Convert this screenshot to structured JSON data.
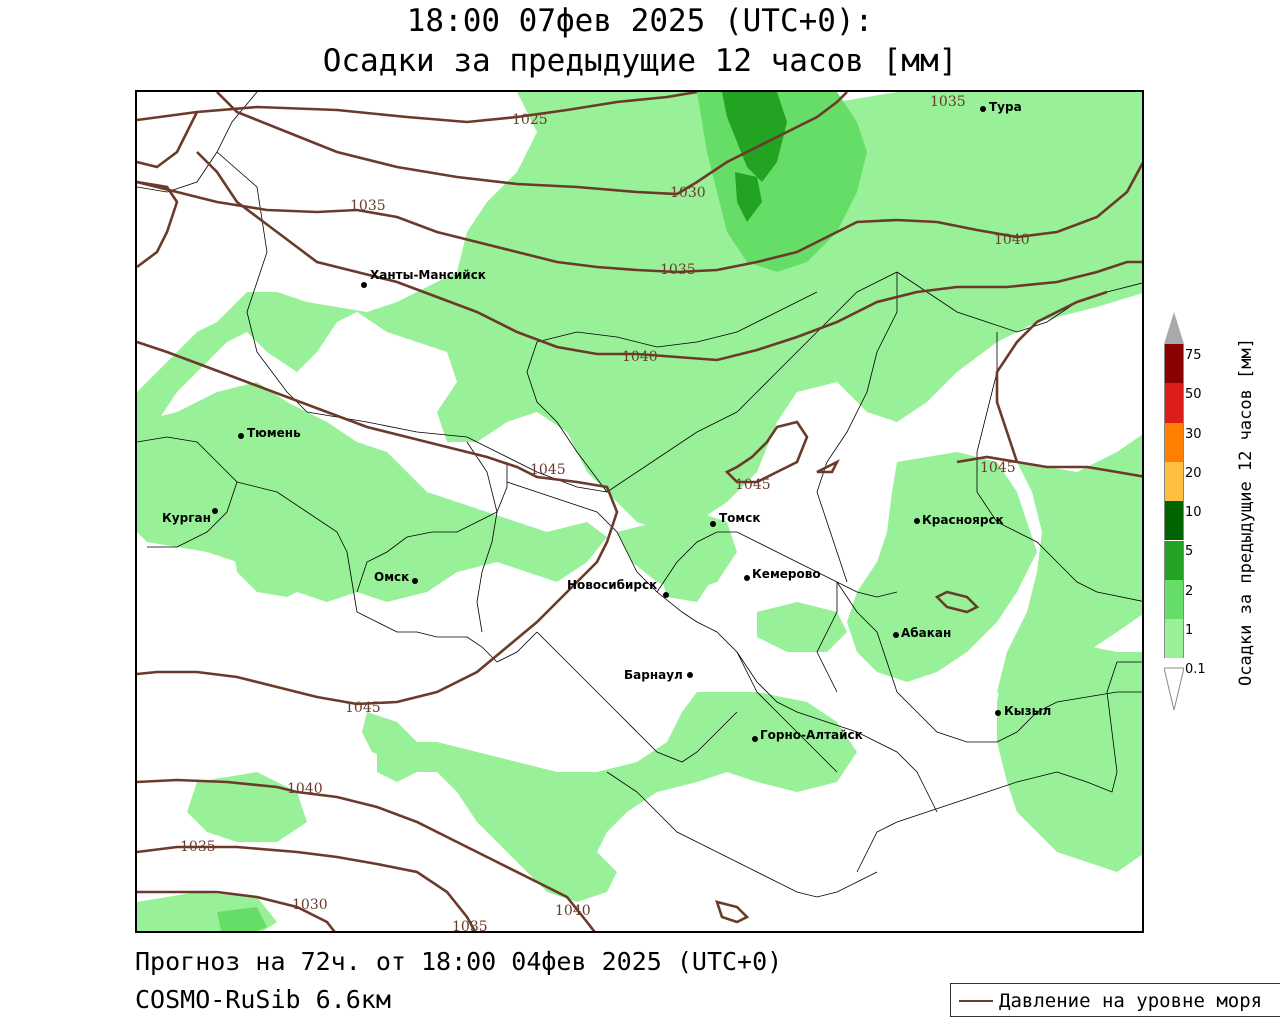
{
  "title": {
    "line1": "18:00 07фев 2025 (UTC+0):",
    "line2": "Осадки за предыдущие 12 часов [мм]"
  },
  "footer": {
    "forecast": "Прогноз на 72ч. от 18:00 04фев 2025 (UTC+0)",
    "model": "COSMO-RuSib 6.6км"
  },
  "legend": {
    "pressure_label": "Давление на уровне моря",
    "pressure_color": "#6b3a2a"
  },
  "colorbar": {
    "label": "Осадки за предыдущие 12 часов [мм]",
    "ticks": [
      "75",
      "50",
      "30",
      "20",
      "10",
      "5",
      "2",
      "1",
      "0.1"
    ],
    "colors": [
      "#a9a9a9",
      "#8b0000",
      "#dd1c1c",
      "#ff7f00",
      "#ffc040",
      "#006400",
      "#22a322",
      "#66dd66",
      "#98f098",
      "#ffffff"
    ]
  },
  "cities": [
    {
      "name": "Тура"
    },
    {
      "name": "Ханты-Мансийск"
    },
    {
      "name": "Тюмень"
    },
    {
      "name": "Курган"
    },
    {
      "name": "Омск"
    },
    {
      "name": "Новосибирск"
    },
    {
      "name": "Томск"
    },
    {
      "name": "Кемерово"
    },
    {
      "name": "Барнаул"
    },
    {
      "name": "Горно-Алтайск"
    },
    {
      "name": "Красноярск"
    },
    {
      "name": "Абакан"
    },
    {
      "name": "Кызыл"
    }
  ],
  "isobar_labels": [
    "1025",
    "1030",
    "1035",
    "1035",
    "1035",
    "1040",
    "1040",
    "1045",
    "1045",
    "1045",
    "1045",
    "1040",
    "1035",
    "1030",
    "1035",
    "1040"
  ]
}
